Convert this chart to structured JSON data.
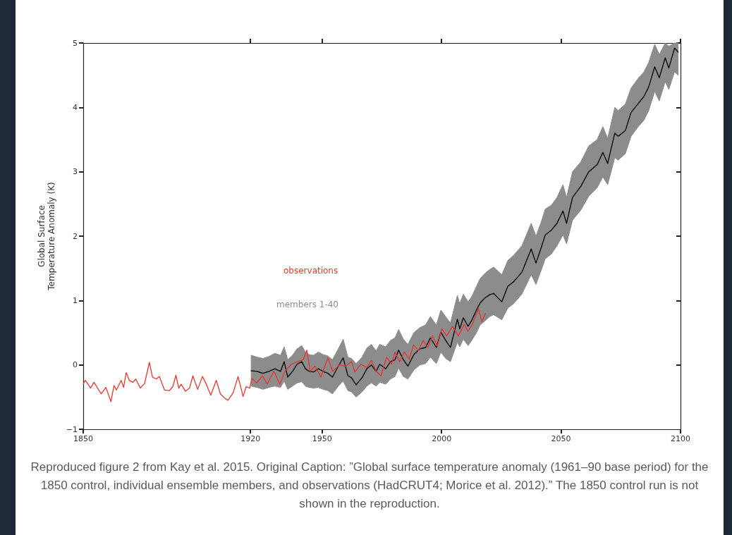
{
  "chart_data": {
    "type": "line",
    "ylabel": "Global Surface\nTemperature Anomaly (K)",
    "xlim": [
      1850,
      2100
    ],
    "xticks": [
      1850,
      1920,
      1950,
      2000,
      2050,
      2100
    ],
    "ylim": [
      -1,
      5
    ],
    "yticks": [
      {
        "value": -1,
        "label": "−1"
      },
      0,
      1,
      2,
      3,
      4,
      5
    ],
    "grid": false,
    "legend": "left",
    "marker": "none",
    "line_style": "solid",
    "annotations": [
      "members 1-40",
      "Reproduced figure 2 from Kay et al. 2015. Original Caption: ”Global surface temperature anomaly (1961–90 base period) for the 1850 control, individual ensemble members, and observations (HadCRUT4; Morice et al. 2012).” The 1850 control run is not shown in the reproduction."
    ],
    "series": [
      {
        "color": "#000000",
        "x": [
          1920.3,
          1922.8,
          1925.2,
          1927.7,
          1930.2,
          1932.6,
          1934.1,
          1935.6,
          1937.6,
          1939.5,
          1941.5,
          1943.0,
          1944.5,
          1946.4,
          1948.4,
          1950.4,
          1952.4,
          1954.3,
          1956.8,
          1958.8,
          1960.8,
          1962.3,
          1964.2,
          1966.7,
          1968.7,
          1970.6,
          1972.6,
          1974.1,
          1976.6,
          1978.6,
          1980.5,
          1982.0,
          1984.0,
          1985.9,
          1988.4,
          1990.9,
          1993.3,
          1995.3,
          1997.8,
          1999.7,
          2001.7,
          2003.7,
          2006.6,
          2007.6,
          2009.1,
          2011.1,
          2012.6,
          2014.6,
          2016.1,
          2018.1,
          2020.1,
          2021.8,
          2025.2,
          2027.7,
          2030.1,
          2033.6,
          2037.5,
          2039.5,
          2041.5,
          2043.4,
          2045.9,
          2048.3,
          2050.8,
          2052.3,
          2054.8,
          2058.2,
          2061.6,
          2065.1,
          2067.5,
          2069.5,
          2072.5,
          2073.9,
          2076.9,
          2079.3,
          2082.3,
          2084.7,
          2086.7,
          2089.2,
          2091.1,
          2093.6,
          2095.1,
          2097.5,
          2099.0
        ],
        "values": [
          -0.09,
          -0.1,
          -0.13,
          -0.1,
          -0.06,
          -0.1,
          0.05,
          -0.19,
          -0.1,
          0.01,
          0.05,
          -0.06,
          -0.1,
          -0.11,
          -0.06,
          -0.1,
          -0.13,
          -0.19,
          -0.02,
          0.11,
          -0.17,
          -0.2,
          -0.31,
          -0.2,
          -0.06,
          0.0,
          -0.1,
          0.01,
          -0.06,
          0.05,
          0.08,
          0.23,
          0.08,
          -0.02,
          0.16,
          0.25,
          0.27,
          0.42,
          0.27,
          0.51,
          0.38,
          0.27,
          0.71,
          0.56,
          0.73,
          0.6,
          0.69,
          0.85,
          0.96,
          1.04,
          1.09,
          1.11,
          0.98,
          1.22,
          1.29,
          1.44,
          1.8,
          1.58,
          1.8,
          2.02,
          2.09,
          2.2,
          2.39,
          2.2,
          2.6,
          2.77,
          3.0,
          3.11,
          3.3,
          3.13,
          3.6,
          3.55,
          3.64,
          3.92,
          4.06,
          4.17,
          4.32,
          4.63,
          4.46,
          4.77,
          4.61,
          4.92,
          4.86
        ],
        "lower": [
          -0.33,
          -0.35,
          -0.38,
          -0.35,
          -0.33,
          -0.35,
          -0.25,
          -0.38,
          -0.33,
          -0.28,
          -0.26,
          -0.33,
          -0.35,
          -0.36,
          -0.35,
          -0.38,
          -0.4,
          -0.45,
          -0.33,
          -0.25,
          -0.4,
          -0.42,
          -0.5,
          -0.42,
          -0.33,
          -0.28,
          -0.33,
          -0.27,
          -0.3,
          -0.22,
          -0.18,
          -0.05,
          -0.18,
          -0.22,
          -0.08,
          0.0,
          0.02,
          0.12,
          0.02,
          0.2,
          0.1,
          0.05,
          0.35,
          0.28,
          0.4,
          0.3,
          0.38,
          0.5,
          0.62,
          0.68,
          0.75,
          0.78,
          0.7,
          0.88,
          0.95,
          1.1,
          1.4,
          1.25,
          1.45,
          1.65,
          1.72,
          1.85,
          2.02,
          1.88,
          2.25,
          2.4,
          2.62,
          2.75,
          2.92,
          2.8,
          3.22,
          3.18,
          3.28,
          3.55,
          3.7,
          3.8,
          3.95,
          4.25,
          4.1,
          4.4,
          4.28,
          4.55,
          4.5
        ],
        "upper": [
          0.15,
          0.12,
          0.1,
          0.13,
          0.18,
          0.15,
          0.28,
          0.08,
          0.15,
          0.25,
          0.3,
          0.2,
          0.16,
          0.15,
          0.2,
          0.16,
          0.14,
          0.08,
          0.25,
          0.4,
          0.12,
          0.1,
          0.02,
          0.12,
          0.26,
          0.32,
          0.22,
          0.32,
          0.28,
          0.38,
          0.42,
          0.55,
          0.4,
          0.32,
          0.5,
          0.58,
          0.62,
          0.75,
          0.62,
          0.85,
          0.75,
          0.65,
          1.08,
          0.95,
          1.1,
          0.98,
          1.06,
          1.22,
          1.34,
          1.42,
          1.48,
          1.52,
          1.4,
          1.62,
          1.7,
          1.85,
          2.2,
          2.0,
          2.2,
          2.42,
          2.48,
          2.6,
          2.8,
          2.6,
          3.0,
          3.15,
          3.4,
          3.5,
          3.7,
          3.52,
          4.0,
          3.95,
          4.05,
          4.3,
          4.45,
          4.55,
          4.7,
          4.98,
          4.82,
          5.0,
          4.95,
          5.0,
          5.0
        ]
      },
      {
        "name": "observations",
        "color": "#e8342f",
        "x": [
          1850.1,
          1850.9,
          1853.1,
          1854.5,
          1857.5,
          1859.5,
          1861.6,
          1862.9,
          1863.9,
          1865.9,
          1866.9,
          1868.0,
          1869.3,
          1870.8,
          1872.0,
          1873.9,
          1875.7,
          1877.7,
          1879.0,
          1880.6,
          1881.9,
          1884.0,
          1886.0,
          1887.5,
          1888.8,
          1890.0,
          1891.0,
          1892.8,
          1894.5,
          1895.9,
          1897.9,
          1899.9,
          1901.4,
          1903.4,
          1905.7,
          1907.4,
          1909.3,
          1910.6,
          1912.8,
          1914.8,
          1916.9,
          1918.2,
          1919.7,
          1920.6,
          1922.6,
          1925.1,
          1927.0,
          1929.8,
          1932.3,
          1934.4,
          1937.2,
          1939.6,
          1942.1,
          1943.6,
          1945.0,
          1947.0,
          1949.5,
          1952.4,
          1954.4,
          1957.3,
          1959.8,
          1962.3,
          1963.7,
          1966.2,
          1968.7,
          1970.6,
          1972.6,
          1974.6,
          1977.0,
          1979.0,
          1980.5,
          1982.4,
          1984.4,
          1986.4,
          1988.3,
          1990.3,
          1992.3,
          1994.2,
          1996.2,
          1998.2,
          2000.1,
          2002.1,
          2004.6,
          2007.0,
          2009.5,
          2011.0,
          2012.9,
          2015.4,
          2016.9,
          2018.3
        ],
        "values": [
          -0.29,
          -0.24,
          -0.36,
          -0.27,
          -0.45,
          -0.35,
          -0.57,
          -0.32,
          -0.39,
          -0.24,
          -0.35,
          -0.12,
          -0.24,
          -0.27,
          -0.22,
          -0.36,
          -0.29,
          0.04,
          -0.19,
          -0.22,
          -0.18,
          -0.39,
          -0.4,
          -0.34,
          -0.16,
          -0.36,
          -0.3,
          -0.41,
          -0.36,
          -0.17,
          -0.38,
          -0.18,
          -0.29,
          -0.47,
          -0.24,
          -0.45,
          -0.52,
          -0.55,
          -0.43,
          -0.18,
          -0.49,
          -0.34,
          -0.36,
          -0.21,
          -0.28,
          -0.17,
          -0.3,
          -0.1,
          -0.3,
          -0.1,
          0.01,
          0.05,
          0.08,
          0.23,
          -0.1,
          -0.02,
          -0.19,
          0.11,
          -0.1,
          0.0,
          -0.02,
          0.05,
          -0.11,
          0.01,
          -0.04,
          0.07,
          -0.1,
          -0.17,
          0.12,
          0.01,
          0.2,
          0.05,
          0.2,
          0.09,
          0.31,
          0.22,
          0.38,
          0.27,
          0.45,
          0.29,
          0.56,
          0.45,
          0.6,
          0.45,
          0.63,
          0.52,
          0.63,
          0.87,
          0.67,
          0.8
        ]
      }
    ]
  }
}
